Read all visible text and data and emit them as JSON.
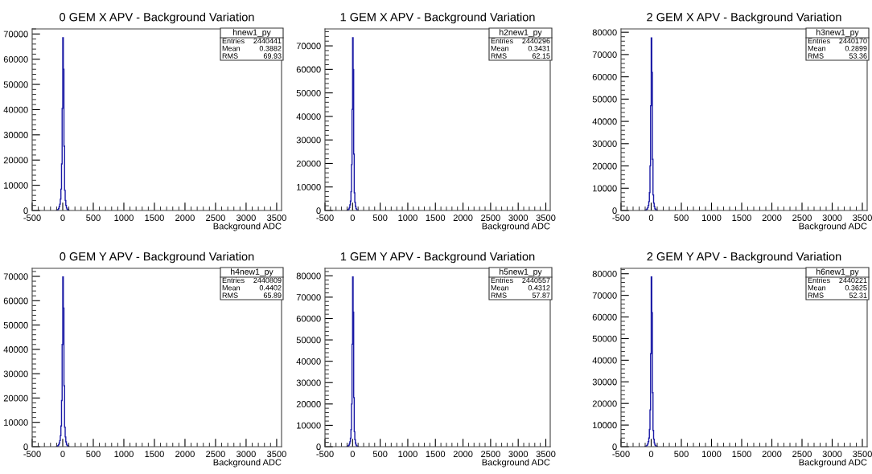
{
  "chart_data": [
    {
      "type": "histogram",
      "title": "0 GEM X APV - Background Variation",
      "xlabel": "Background ADC",
      "color": "#1a1aa6",
      "bins": [
        -100,
        -90,
        -80,
        -70,
        -60,
        -50,
        -40,
        -30,
        -20,
        -10,
        0,
        10,
        20,
        30,
        40,
        50,
        60,
        70,
        80,
        90,
        100
      ],
      "values": [
        100,
        200,
        400,
        800,
        1500,
        2500,
        4500,
        8500,
        18500,
        40500,
        68500,
        56000,
        25500,
        8000,
        4000,
        2000,
        1000,
        500,
        200,
        100
      ],
      "xlim": [
        -500,
        3580
      ],
      "xticks": [
        -500,
        0,
        500,
        1000,
        1500,
        2000,
        2500,
        3000,
        3500
      ],
      "ylim": [
        0,
        72000
      ],
      "yticks": [
        0,
        10000,
        20000,
        30000,
        40000,
        50000,
        60000,
        70000
      ],
      "annotations": [
        "hnew1_py",
        "Entries",
        "2440441",
        "Mean",
        "0.3882",
        "RMS",
        "69.93"
      ]
    },
    {
      "type": "histogram",
      "title": "1 GEM X APV - Background Variation",
      "xlabel": "Background ADC",
      "color": "#1a1aa6",
      "bins": [
        -100,
        -90,
        -80,
        -70,
        -60,
        -50,
        -40,
        -30,
        -20,
        -10,
        0,
        10,
        20,
        30,
        40,
        50,
        60,
        70,
        80,
        90,
        100
      ],
      "values": [
        100,
        200,
        400,
        700,
        1300,
        2400,
        4000,
        8000,
        19500,
        43000,
        73500,
        60000,
        24000,
        7500,
        3500,
        1800,
        900,
        400,
        200,
        100
      ],
      "xlim": [
        -500,
        3580
      ],
      "xticks": [
        -500,
        0,
        500,
        1000,
        1500,
        2000,
        2500,
        3000,
        3500
      ],
      "ylim": [
        0,
        77200
      ],
      "yticks": [
        0,
        10000,
        20000,
        30000,
        40000,
        50000,
        60000,
        70000
      ],
      "annotations": [
        "h2new1_py",
        "Entries",
        "2440296",
        "Mean",
        "0.3431",
        "RMS",
        "62.15"
      ]
    },
    {
      "type": "histogram",
      "title": "2 GEM X APV - Background Variation",
      "xlabel": "Background ADC",
      "color": "#1a1aa6",
      "bins": [
        -100,
        -90,
        -80,
        -70,
        -60,
        -50,
        -40,
        -30,
        -20,
        -10,
        0,
        10,
        20,
        30,
        40,
        50,
        60,
        70,
        80,
        90,
        100
      ],
      "values": [
        100,
        200,
        400,
        700,
        1300,
        2300,
        4000,
        8000,
        20000,
        47000,
        77500,
        62000,
        23000,
        7000,
        3300,
        1700,
        800,
        400,
        200,
        100
      ],
      "xlim": [
        -500,
        3580
      ],
      "xticks": [
        -500,
        0,
        500,
        1000,
        1500,
        2000,
        2500,
        3000,
        3500
      ],
      "ylim": [
        0,
        81500
      ],
      "yticks": [
        0,
        10000,
        20000,
        30000,
        40000,
        50000,
        60000,
        70000,
        80000
      ],
      "annotations": [
        "h3new1_py",
        "Entries",
        "2440170",
        "Mean",
        "0.2899",
        "RMS",
        "53.36"
      ]
    },
    {
      "type": "histogram",
      "title": "0 GEM Y APV - Background Variation",
      "xlabel": "Background ADC",
      "color": "#1a1aa6",
      "bins": [
        -100,
        -90,
        -80,
        -70,
        -60,
        -50,
        -40,
        -30,
        -20,
        -10,
        0,
        10,
        20,
        30,
        40,
        50,
        60,
        70,
        80,
        90,
        100
      ],
      "values": [
        100,
        200,
        400,
        800,
        1500,
        2500,
        4500,
        8500,
        19000,
        42000,
        69800,
        57000,
        25000,
        8000,
        4000,
        2000,
        1000,
        500,
        200,
        100
      ],
      "xlim": [
        -500,
        3580
      ],
      "xticks": [
        -500,
        0,
        500,
        1000,
        1500,
        2000,
        2500,
        3000,
        3500
      ],
      "ylim": [
        0,
        73300
      ],
      "yticks": [
        0,
        10000,
        20000,
        30000,
        40000,
        50000,
        60000,
        70000
      ],
      "annotations": [
        "h4new1_py",
        "Entries",
        "2440809",
        "Mean",
        "0.4402",
        "RMS",
        "65.89"
      ]
    },
    {
      "type": "histogram",
      "title": "1 GEM Y APV - Background Variation",
      "xlabel": "Background ADC",
      "color": "#1a1aa6",
      "bins": [
        -100,
        -90,
        -80,
        -70,
        -60,
        -50,
        -40,
        -30,
        -20,
        -10,
        0,
        10,
        20,
        30,
        40,
        50,
        60,
        70,
        80,
        90,
        100
      ],
      "values": [
        100,
        200,
        400,
        700,
        1300,
        2300,
        4000,
        8000,
        20000,
        48000,
        79500,
        63000,
        23000,
        7000,
        3300,
        1700,
        800,
        400,
        200,
        100
      ],
      "xlim": [
        -500,
        3580
      ],
      "xticks": [
        -500,
        0,
        500,
        1000,
        1500,
        2000,
        2500,
        3000,
        3500
      ],
      "ylim": [
        0,
        83500
      ],
      "yticks": [
        0,
        10000,
        20000,
        30000,
        40000,
        50000,
        60000,
        70000,
        80000
      ],
      "annotations": [
        "h5new1_py",
        "Entries",
        "2440557",
        "Mean",
        "0.4312",
        "RMS",
        "57.87"
      ]
    },
    {
      "type": "histogram",
      "title": "2 GEM Y APV - Background Variation",
      "xlabel": "Background ADC",
      "color": "#1a1aa6",
      "bins": [
        -100,
        -90,
        -80,
        -70,
        -60,
        -50,
        -40,
        -30,
        -20,
        -10,
        0,
        10,
        20,
        30,
        40,
        50,
        60,
        70,
        80,
        90,
        100
      ],
      "values": [
        100,
        200,
        400,
        700,
        1300,
        2300,
        4000,
        8000,
        17000,
        43000,
        78500,
        62000,
        25000,
        7500,
        3500,
        1700,
        800,
        400,
        200,
        100
      ],
      "xlim": [
        -500,
        3580
      ],
      "xticks": [
        -500,
        0,
        500,
        1000,
        1500,
        2000,
        2500,
        3000,
        3500
      ],
      "ylim": [
        0,
        82500
      ],
      "yticks": [
        0,
        10000,
        20000,
        30000,
        40000,
        50000,
        60000,
        70000,
        80000
      ],
      "annotations": [
        "h6new1_py",
        "Entries",
        "2440221",
        "Mean",
        "0.3625",
        "RMS",
        "52.31"
      ]
    }
  ]
}
